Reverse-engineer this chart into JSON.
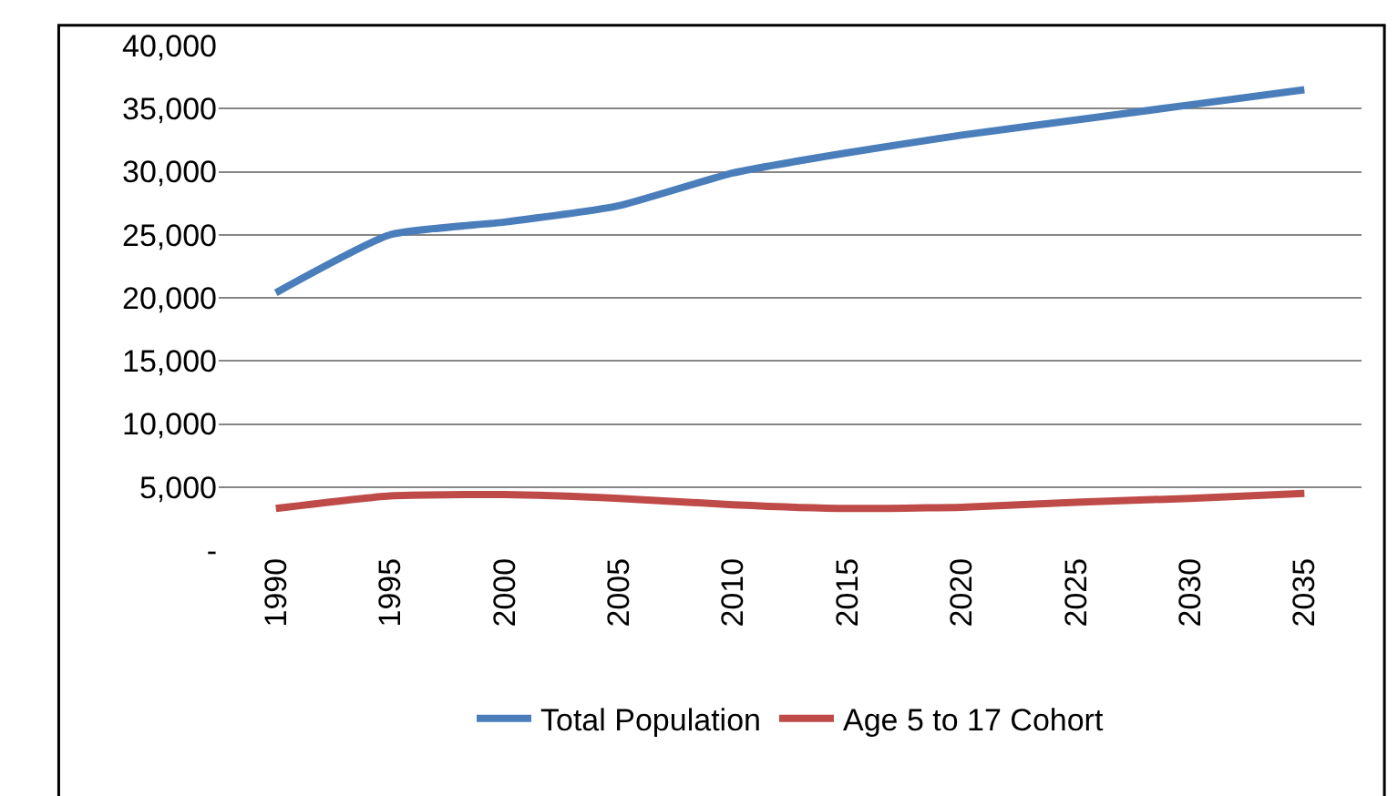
{
  "chart_data": {
    "type": "line",
    "categories": [
      "1990",
      "1995",
      "2000",
      "2005",
      "2010",
      "2015",
      "2020",
      "2025",
      "2030",
      "2035"
    ],
    "series": [
      {
        "name": "Total Population",
        "color": "#4a7ebb",
        "values": [
          20400,
          25000,
          26000,
          27300,
          29900,
          31500,
          32900,
          34100,
          35300,
          36500
        ]
      },
      {
        "name": "Age 5 to 17 Cohort",
        "color": "#be4b48",
        "values": [
          3300,
          4300,
          4400,
          4100,
          3600,
          3300,
          3400,
          3800,
          4100,
          4500
        ]
      }
    ],
    "ylim": [
      0,
      40000
    ],
    "yticks": [
      {
        "value": 0,
        "label": "-"
      },
      {
        "value": 5000,
        "label": "5,000"
      },
      {
        "value": 10000,
        "label": "10,000"
      },
      {
        "value": 15000,
        "label": "15,000"
      },
      {
        "value": 20000,
        "label": "20,000"
      },
      {
        "value": 25000,
        "label": "25,000"
      },
      {
        "value": 30000,
        "label": "30,000"
      },
      {
        "value": 35000,
        "label": "35,000"
      },
      {
        "value": 40000,
        "label": "40,000"
      }
    ],
    "grid": "y",
    "legend": "bottom",
    "marker": "none",
    "line_style": "solid"
  }
}
